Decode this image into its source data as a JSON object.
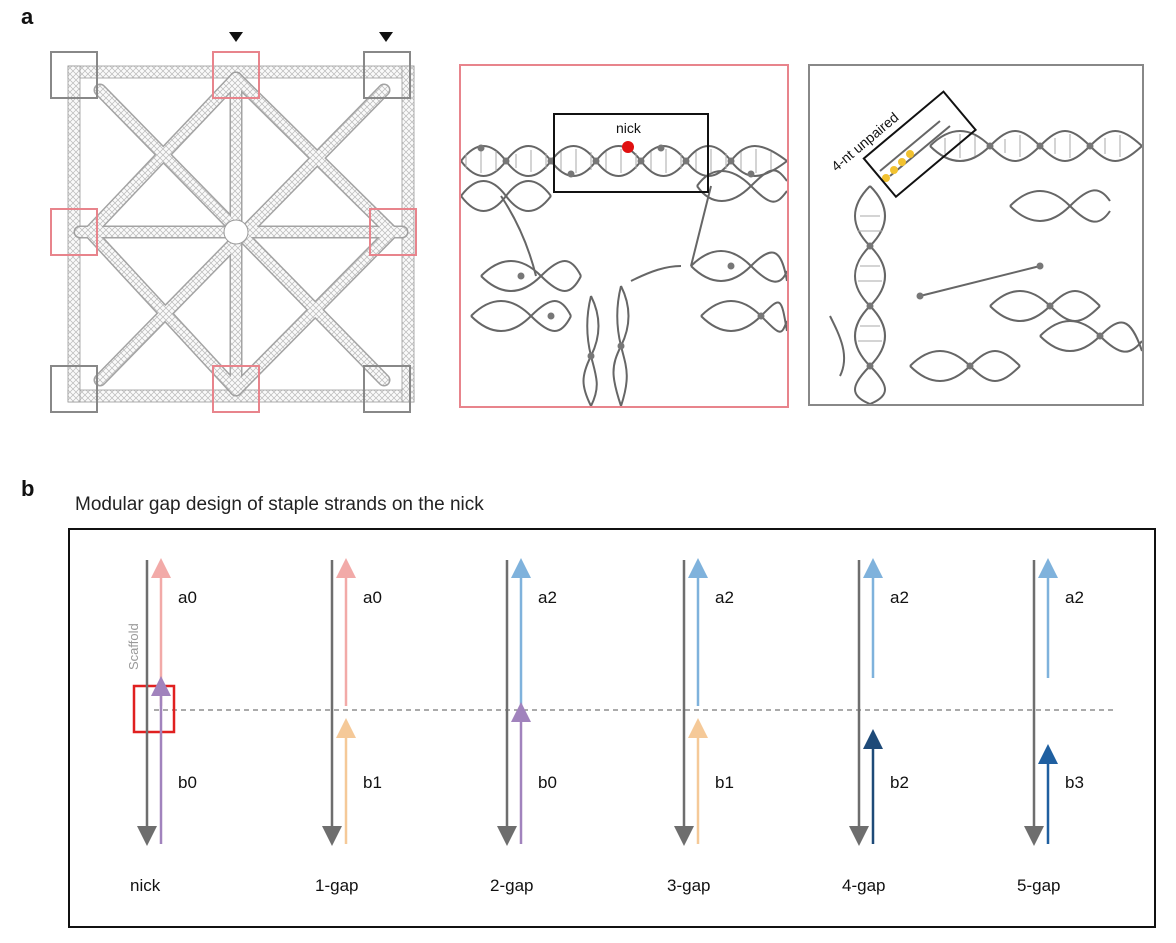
{
  "panel_a": {
    "letter": "a",
    "zoom_nick_label": "nick",
    "zoom_unpaired_label": "4-nt unpaired",
    "colors": {
      "nick_box": "#e8848c",
      "unpaired_box": "#888888",
      "nick_dot": "#e01010",
      "unpaired_bases": "#f2c230"
    }
  },
  "panel_b": {
    "letter": "b",
    "title": "Modular gap design of staple strands on the nick",
    "scaffold_label": "Scaffold",
    "designs": [
      {
        "name": "nick",
        "top": "a0",
        "bottom": "b0",
        "top_color": "#f2aaa8",
        "bottom_color": "#a183bd"
      },
      {
        "name": "1-gap",
        "top": "a0",
        "bottom": "b1",
        "top_color": "#f2aaa8",
        "bottom_color": "#f5c998"
      },
      {
        "name": "2-gap",
        "top": "a2",
        "bottom": "b0",
        "top_color": "#7fb2dc",
        "bottom_color": "#a183bd"
      },
      {
        "name": "3-gap",
        "top": "a2",
        "bottom": "b1",
        "top_color": "#7fb2dc",
        "bottom_color": "#f5c998"
      },
      {
        "name": "4-gap",
        "top": "a2",
        "bottom": "b2",
        "top_color": "#7fb2dc",
        "bottom_color": "#1e4a78"
      },
      {
        "name": "5-gap",
        "top": "a2",
        "bottom": "b3",
        "top_color": "#7fb2dc",
        "bottom_color": "#1f5fa0"
      }
    ],
    "colors": {
      "scaffold": "#6e6e6e",
      "highlight_box": "#e02020"
    }
  }
}
